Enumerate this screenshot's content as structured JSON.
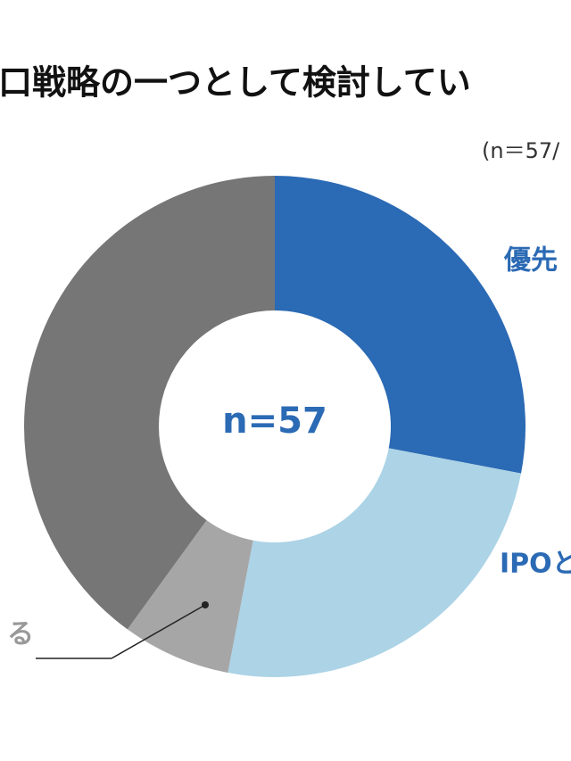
{
  "chart_data": {
    "type": "donut",
    "title": "口戦略の一つとして検討してい",
    "note": "(n＝57/",
    "center_label": "n=57",
    "categories": [
      "優先",
      "IPOと",
      "る",
      null
    ],
    "series": [
      {
        "values": [
          28,
          25,
          7,
          40
        ],
        "colors": [
          "#2b6ab4",
          "#acd3e6",
          "#a6a6a6",
          "#767676"
        ]
      }
    ]
  }
}
